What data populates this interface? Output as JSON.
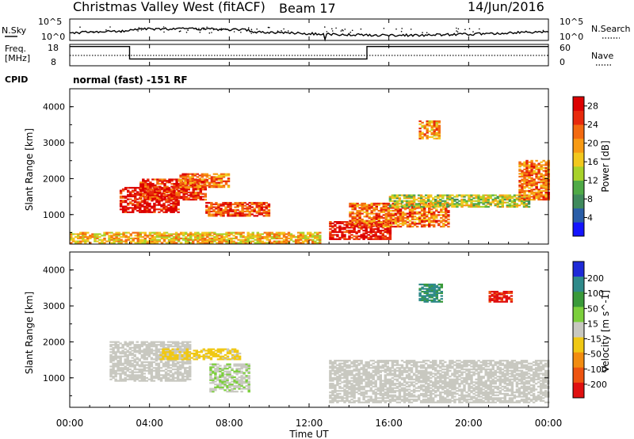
{
  "header": {
    "radar": "Christmas Valley West (fitACF)",
    "beam": "Beam 17",
    "date": "14/Jun/2016"
  },
  "nsky_panel": {
    "left_label": "N.Sky",
    "left_ticks": [
      "10^5",
      "10^0"
    ],
    "right_label": "N.Search",
    "right_ticks": [
      "10^5",
      "10^0"
    ]
  },
  "freq_panel": {
    "left_label": [
      "Freq.",
      "[MHz]"
    ],
    "left_ticks": [
      "18",
      "8"
    ],
    "right_label": "Nave",
    "right_ticks": [
      "60",
      "0"
    ]
  },
  "cpid": {
    "label": "CPID",
    "text": "normal (fast) -151 RF"
  },
  "power_panel": {
    "ylabel": "Slant Range [km]",
    "yticks": [
      "4000",
      "3000",
      "2000",
      "1000"
    ],
    "colorbar_label": "Power [dB]",
    "colorbar_ticks": [
      "28",
      "24",
      "20",
      "16",
      "12",
      "8",
      "4"
    ],
    "colors": [
      "#1414ff",
      "#2a5ea8",
      "#3f8a5c",
      "#4faa46",
      "#a8d22a",
      "#f2c81e",
      "#f79a14",
      "#f36a10",
      "#e82a0c",
      "#dc0000"
    ]
  },
  "velocity_panel": {
    "ylabel": "Slant Range [km]",
    "yticks": [
      "4000",
      "3000",
      "2000",
      "1000"
    ],
    "colorbar_label": "Velocity [m s^-1]",
    "colorbar_ticks": [
      "200",
      "100",
      "50",
      "15",
      "-15",
      "-50",
      "-100",
      "-200"
    ],
    "colors": [
      "#1e2ad8",
      "#2f8a8a",
      "#3a9a3a",
      "#7ccf3c",
      "#c8c8c0",
      "#f0c814",
      "#f28c10",
      "#ee5410",
      "#e01010"
    ]
  },
  "xaxis": {
    "label": "Time UT",
    "ticks": [
      "00:00",
      "04:00",
      "08:00",
      "12:00",
      "16:00",
      "20:00",
      "00:00"
    ]
  },
  "chart_data": {
    "type": "heatmap",
    "title": "Christmas Valley West (fitACF) Beam 17 14/Jun/2016",
    "xlabel": "Time UT",
    "ylabel": "Slant Range [km]",
    "xlim_hours": [
      0,
      24
    ],
    "ylim_km": [
      180,
      4500
    ],
    "power_colorbar": {
      "label": "Power [dB]",
      "range": [
        0,
        30
      ]
    },
    "velocity_colorbar": {
      "label": "Velocity [m s^-1]",
      "range": [
        -250,
        250
      ]
    },
    "power_regions": [
      {
        "t": [
          2.5,
          5.5
        ],
        "r": [
          1050,
          1750
        ],
        "value": 28
      },
      {
        "t": [
          3.5,
          6.8
        ],
        "r": [
          1400,
          2000
        ],
        "value": 26
      },
      {
        "t": [
          5.5,
          8.0
        ],
        "r": [
          1750,
          2150
        ],
        "value": 22
      },
      {
        "t": [
          6.8,
          10.0
        ],
        "r": [
          950,
          1350
        ],
        "value": 24
      },
      {
        "t": [
          0.0,
          12.5
        ],
        "r": [
          200,
          500
        ],
        "value": 18
      },
      {
        "t": [
          13.0,
          16.0
        ],
        "r": [
          300,
          800
        ],
        "value": 28
      },
      {
        "t": [
          14.0,
          19.0
        ],
        "r": [
          650,
          1300
        ],
        "value": 22
      },
      {
        "t": [
          16.0,
          23.0
        ],
        "r": [
          1200,
          1550
        ],
        "value": 14
      },
      {
        "t": [
          17.5,
          18.5
        ],
        "r": [
          3100,
          3600
        ],
        "value": 20
      },
      {
        "t": [
          22.5,
          24.0
        ],
        "r": [
          1400,
          2500
        ],
        "value": 22
      }
    ],
    "velocity_regions": [
      {
        "t": [
          2.0,
          6.0
        ],
        "r": [
          900,
          2000
        ],
        "value": 0
      },
      {
        "t": [
          7.0,
          9.0
        ],
        "r": [
          600,
          1400
        ],
        "value": 20
      },
      {
        "t": [
          4.5,
          8.5
        ],
        "r": [
          1500,
          1800
        ],
        "value": -40
      },
      {
        "t": [
          13.0,
          24.0
        ],
        "r": [
          300,
          1500
        ],
        "value": 0
      },
      {
        "t": [
          17.5,
          18.6
        ],
        "r": [
          3100,
          3600
        ],
        "value": 150
      },
      {
        "t": [
          21.0,
          22.2
        ],
        "r": [
          3100,
          3400
        ],
        "value": -200
      }
    ]
  }
}
